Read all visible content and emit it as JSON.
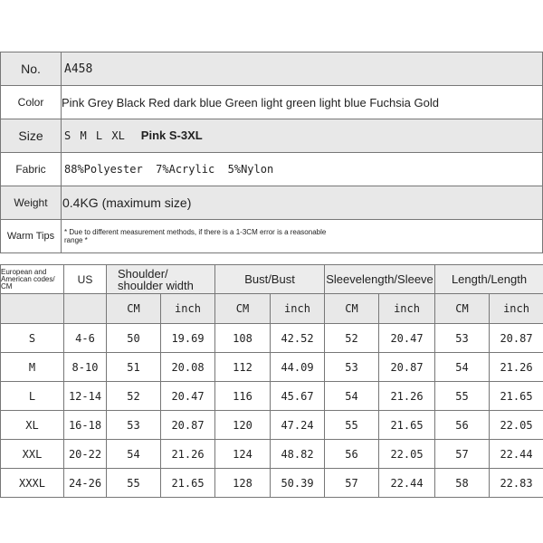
{
  "info": {
    "rows": [
      {
        "label": "No.",
        "value": "A458"
      },
      {
        "label": "Color",
        "value": "Pink Grey Black Red dark blue Green light green light blue Fuchsia Gold"
      },
      {
        "label": "Size",
        "value": "S M L XL",
        "extra": "Pink S-3XL"
      },
      {
        "label": "Fabric",
        "value": "88%Polyester  7%Acrylic  5%Nylon"
      },
      {
        "label": "Weight",
        "value": "0.4KG (maximum size)"
      },
      {
        "label": "Warm Tips",
        "value": "* Due to different measurement methods, if there is a 1-3CM error is a reasonable range *"
      }
    ]
  },
  "size_table": {
    "header": [
      "European and American codes/ CM",
      "US",
      "Shoulder/ shoulder width",
      "Bust/Bust",
      "Sleevelength/Sleeve",
      "Length/Length"
    ],
    "units": [
      "CM",
      "inch",
      "CM",
      "inch",
      "CM",
      "inch",
      "CM",
      "inch"
    ],
    "rows": [
      [
        "S",
        "4-6",
        "50",
        "19.69",
        "108",
        "42.52",
        "52",
        "20.47",
        "53",
        "20.87"
      ],
      [
        "M",
        "8-10",
        "51",
        "20.08",
        "112",
        "44.09",
        "53",
        "20.87",
        "54",
        "21.26"
      ],
      [
        "L",
        "12-14",
        "52",
        "20.47",
        "116",
        "45.67",
        "54",
        "21.26",
        "55",
        "21.65"
      ],
      [
        "XL",
        "16-18",
        "53",
        "20.87",
        "120",
        "47.24",
        "55",
        "21.65",
        "56",
        "22.05"
      ],
      [
        "XXL",
        "20-22",
        "54",
        "21.26",
        "124",
        "48.82",
        "56",
        "22.05",
        "57",
        "22.44"
      ],
      [
        "XXXL",
        "24-26",
        "55",
        "21.65",
        "128",
        "50.39",
        "57",
        "22.44",
        "58",
        "22.83"
      ]
    ]
  }
}
